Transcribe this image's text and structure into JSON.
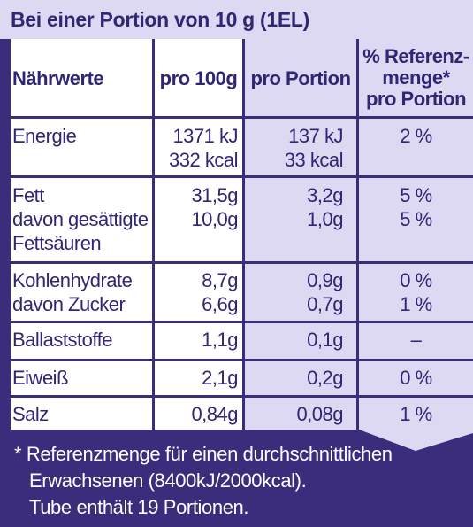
{
  "header": {
    "title": "Bei einer Portion von 10 g (1EL)"
  },
  "table": {
    "columns": [
      "Nährwerte",
      "pro 100g",
      "pro Portion",
      [
        "% Referenz-",
        "menge*",
        "pro Portion"
      ]
    ],
    "rows": [
      {
        "labels": [
          "Energie"
        ],
        "per100": [
          "1371 kJ",
          "332 kcal"
        ],
        "portion": [
          "137 kJ",
          "33 kcal"
        ],
        "ri": [
          "2 %"
        ]
      },
      {
        "labels": [
          "Fett",
          "davon gesättigte",
          "Fettsäuren"
        ],
        "per100": [
          "31,5g",
          "10,0g"
        ],
        "portion": [
          "3,2g",
          "1,0g"
        ],
        "ri": [
          "5 %",
          "5 %"
        ]
      },
      {
        "labels": [
          "Kohlenhydrate",
          "davon Zucker"
        ],
        "per100": [
          "8,7g",
          "6,6g"
        ],
        "portion": [
          "0,9g",
          "0,7g"
        ],
        "ri": [
          "0 %",
          "1 %"
        ]
      },
      {
        "labels": [
          "Ballaststoffe"
        ],
        "per100": [
          "1,1g"
        ],
        "portion": [
          "0,1g"
        ],
        "ri": [
          "–"
        ]
      },
      {
        "labels": [
          "Eiweiß"
        ],
        "per100": [
          "2,1g"
        ],
        "portion": [
          "0,2g"
        ],
        "ri": [
          "0 %"
        ]
      },
      {
        "labels": [
          "Salz"
        ],
        "per100": [
          "0,84g"
        ],
        "portion": [
          "0,08g"
        ],
        "ri": [
          "1 %"
        ]
      }
    ]
  },
  "footer": {
    "lines": [
      "* Referenzmenge für einen durchschnittlichen",
      "Erwachsenen (8400kJ/2000kcal).",
      "Tube enthält 19 Portionen."
    ]
  },
  "colors": {
    "primary": "#3b2d7c",
    "shade": "#ddd9f2",
    "text": "#2f2674"
  }
}
